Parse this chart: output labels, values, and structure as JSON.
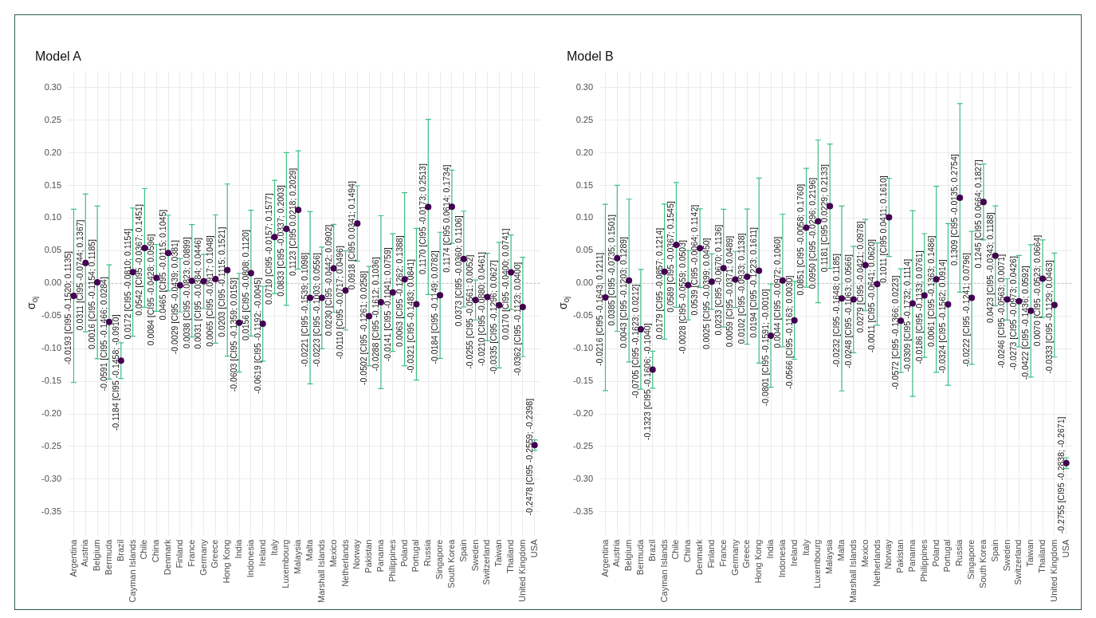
{
  "chart_data": [
    {
      "type": "scatter",
      "title": "Model A",
      "ylabel": "σ$_{0j}$",
      "marker": "circle",
      "grid": true,
      "categories": [
        "Argentina",
        "Austria",
        "Belgium",
        "Bermuda",
        "Brazil",
        "Cayman Islands",
        "Chile",
        "China",
        "Denmark",
        "Finland",
        "France",
        "Germany",
        "Greece",
        "Hong Kong",
        "India",
        "Indonesia",
        "Ireland",
        "Italy",
        "Luxembourg",
        "Malaysia",
        "Malta",
        "Marshall Islands",
        "Mexico",
        "Netherlands",
        "Norway",
        "Pakistan",
        "Panama",
        "Philippines",
        "Poland",
        "Portugal",
        "Russia",
        "Singapore",
        "South Korea",
        "Spain",
        "Sweden",
        "Switzerland",
        "Taiwan",
        "Thailand",
        "United Kingdom",
        "USA"
      ],
      "series": [
        {
          "color": "#440154",
          "values": [
            -0.0193,
            0.0311,
            0.0016,
            -0.0591,
            -0.1184,
            0.0172,
            0.0542,
            0.0084,
            0.0465,
            -0.0029,
            0.0038,
            0.0031,
            0.0065,
            0.0203,
            -0.0603,
            0.0156,
            -0.0619,
            0.071,
            0.0833,
            0.1123,
            -0.0221,
            -0.0223,
            0.023,
            -0.011,
            0.0918,
            -0.0502,
            -0.0288,
            -0.0141,
            0.0063,
            -0.0321,
            0.117,
            -0.0184,
            0.1174,
            0.0373,
            -0.0255,
            -0.021,
            -0.0335,
            0.017,
            -0.0362,
            -0.2478
          ],
          "errors": [
            [
              -0.152,
              0.1135
            ],
            [
              -0.0744,
              0.1367
            ],
            [
              -0.1154,
              0.1185
            ],
            [
              -0.1466,
              0.0284
            ],
            [
              -0.1458,
              -0.091
            ],
            [
              -0.081,
              0.1154
            ],
            [
              -0.0367,
              0.1451
            ],
            [
              -0.0428,
              0.0596
            ],
            [
              -0.0115,
              0.1045
            ],
            [
              -0.0439,
              0.0381
            ],
            [
              -0.0823,
              0.0899
            ],
            [
              -0.0384,
              0.0446
            ],
            [
              -0.0917,
              0.1048
            ],
            [
              -0.1115,
              0.1521
            ],
            [
              -0.1359,
              0.0153
            ],
            [
              -0.0808,
              0.112
            ],
            [
              -0.1192,
              -0.0045
            ],
            [
              -0.0157,
              0.1577
            ],
            [
              -0.0337,
              0.2003
            ],
            [
              0.0218,
              0.2029
            ],
            [
              -0.1539,
              0.1098
            ],
            [
              -0.1003,
              0.0556
            ],
            [
              -0.0442,
              0.0902
            ],
            [
              -0.0717,
              0.0496
            ],
            [
              0.0341,
              0.1494
            ],
            [
              -0.1261,
              0.0258
            ],
            [
              -0.1612,
              0.1036
            ],
            [
              -0.1041,
              0.0759
            ],
            [
              -0.1262,
              0.1388
            ],
            [
              -0.1483,
              0.0841
            ],
            [
              -0.0173,
              0.2513
            ],
            [
              -0.1149,
              0.0782
            ],
            [
              0.0614,
              0.1734
            ],
            [
              -0.036,
              0.1106
            ],
            [
              -0.0561,
              0.0052
            ],
            [
              -0.088,
              0.0461
            ],
            [
              -0.1296,
              0.0627
            ],
            [
              -0.04,
              0.0741
            ],
            [
              -0.1123,
              0.04
            ],
            [
              -0.2559,
              -0.2398
            ]
          ],
          "value_labels": [
            "-0.0193 [CI95 -0.1520; 0.1135]",
            "0.0311 [CI95 -0.0744; 0.1367]",
            "0.0016 [CI95 -0.1154; 0.1185]",
            "-0.0591 [CI95 -0.1466; 0.0284]",
            "-0.1184 [CI95 -0.1458; -0.0910]",
            "0.0172 [CI95 -0.0810; 0.1154]",
            "0.0542 [CI95 -0.0367; 0.1451]",
            "0.0084 [CI95 -0.0428; 0.0596]",
            "0.0465 [CI95 -0.0115; 0.1045]",
            "-0.0029 [CI95 -0.0439; 0.0381]",
            "0.0038 [CI95 -0.0823; 0.0899]",
            "0.0031 [CI95 -0.0384; 0.0446]",
            "0.0065 [CI95 -0.0917; 0.1048]",
            "0.0203 [CI95 -0.1115; 0.1521]",
            "-0.0603 [CI95 -0.1359; 0.0153]",
            "0.0156 [CI95 -0.0808; 0.1120]",
            "-0.0619 [CI95 -0.1192; -0.0045]",
            "0.0710 [CI95 -0.0157; 0.1577]",
            "0.0833 [CI95 -0.0337; 0.2003]",
            "0.1123 [CI95 0.0218; 0.2029]",
            "-0.0221 [CI95 -0.1539; 0.1098]",
            "-0.0223 [CI95 -0.1003; 0.0556]",
            "0.0230 [CI95 -0.0442; 0.0902]",
            "-0.0110 [CI95 -0.0717; 0.0496]",
            "0.0918 [CI95 0.0341; 0.1494]",
            "-0.0502 [CI95 -0.1261; 0.0258]",
            "-0.0288 [CI95 -0.1612; 0.1036]",
            "-0.0141 [CI95 -0.1041; 0.0759]",
            "0.0063 [CI95 -0.1262; 0.1388]",
            "-0.0321 [CI95 -0.1483; 0.0841]",
            "0.1170 [CI95 -0.0173; 0.2513]",
            "-0.0184 [CI95 -0.1149; 0.0782]",
            "0.1174 [CI95 0.0614; 0.1734]",
            "0.0373 [CI95 -0.0360; 0.1106]",
            "-0.0255 [CI95 -0.0561; 0.0052]",
            "-0.0210 [CI95 -0.0880; 0.0461]",
            "-0.0335 [CI95 -0.1296; 0.0627]",
            "0.0170 [CI95 -0.0400; 0.0741]",
            "-0.0362 [CI95 -0.1123; 0.0400]",
            "-0.2478 [CI95 -0.2559; -0.2398]"
          ]
        }
      ],
      "ylim": [
        -0.385,
        0.325
      ],
      "yticks": [
        {
          "value": -0.35,
          "label": "-0.35"
        },
        {
          "value": -0.3,
          "label": "-0.30"
        },
        {
          "value": -0.25,
          "label": "-0.25"
        },
        {
          "value": -0.2,
          "label": "-0.20"
        },
        {
          "value": -0.15,
          "label": "-0.15"
        },
        {
          "value": -0.1,
          "label": "-0.10"
        },
        {
          "value": -0.05,
          "label": "-0.05"
        },
        {
          "value": 0,
          "label": "0.00"
        },
        {
          "value": 0.05,
          "label": "0.05"
        },
        {
          "value": 0.1,
          "label": "0.10"
        },
        {
          "value": 0.15,
          "label": "0.15"
        },
        {
          "value": 0.2,
          "label": "0.20"
        },
        {
          "value": 0.25,
          "label": "0.25"
        },
        {
          "value": 0.3,
          "label": "0.30"
        }
      ],
      "ref_lines": [
        {
          "axis": "y",
          "value": 0,
          "color": "#bbbbbb",
          "line_style": "dotted"
        }
      ]
    },
    {
      "type": "scatter",
      "title": "Model B",
      "ylabel": "σ$_{0j}$",
      "marker": "circle",
      "grid": true,
      "categories": [
        "Argentina",
        "Austria",
        "Belgium",
        "Bermuda",
        "Brazil",
        "Cayman Islands",
        "Chile",
        "China",
        "Denmark",
        "Finland",
        "France",
        "Germany",
        "Greece",
        "Hong Kong",
        "India",
        "Indonesia",
        "Ireland",
        "Italy",
        "Luxembourg",
        "Malaysia",
        "Malta",
        "Marshall Islands",
        "Mexico",
        "Netherlands",
        "Norway",
        "Pakistan",
        "Panama",
        "Philippines",
        "Poland",
        "Portugal",
        "Russia",
        "Singapore",
        "South Korea",
        "Spain",
        "Sweden",
        "Switzerland",
        "Taiwan",
        "Thailand",
        "United Kingdom",
        "USA"
      ],
      "series": [
        {
          "color": "#440154",
          "values": [
            -0.0216,
            0.0385,
            0.0043,
            -0.0705,
            -0.1323,
            0.0179,
            0.0589,
            -0.0028,
            0.0539,
            0.0025,
            0.0233,
            0.0059,
            0.0102,
            0.0194,
            -0.0801,
            0.0044,
            -0.0566,
            0.0851,
            0.095,
            0.1181,
            -0.0232,
            -0.0248,
            0.0279,
            -0.0011,
            0.1011,
            -0.0572,
            -0.0309,
            -0.0186,
            0.0061,
            -0.0324,
            0.1309,
            -0.0222,
            0.1245,
            0.0423,
            -0.0246,
            -0.0273,
            -0.0422,
            0.007,
            -0.0333,
            -0.2755
          ],
          "errors": [
            [
              -0.1643,
              0.1211
            ],
            [
              -0.0735,
              0.1501
            ],
            [
              -0.1203,
              0.1289
            ],
            [
              -0.1623,
              0.0212
            ],
            [
              -0.1606,
              -0.104
            ],
            [
              -0.0857,
              0.1214
            ],
            [
              -0.0367,
              0.1545
            ],
            [
              -0.0559,
              0.0503
            ],
            [
              -0.0064,
              0.1142
            ],
            [
              -0.0399,
              0.045
            ],
            [
              -0.067,
              0.1136
            ],
            [
              -0.0371,
              0.0489
            ],
            [
              -0.0933,
              0.1138
            ],
            [
              -0.1223,
              0.1611
            ],
            [
              -0.1591,
              -0.001
            ],
            [
              -0.0972,
              0.106
            ],
            [
              -0.1163,
              0.003
            ],
            [
              -0.0058,
              0.176
            ],
            [
              -0.0296,
              0.2196
            ],
            [
              0.0229,
              0.2133
            ],
            [
              -0.1648,
              0.1185
            ],
            [
              -0.1063,
              0.0566
            ],
            [
              -0.0421,
              0.0978
            ],
            [
              -0.0641,
              0.062
            ],
            [
              0.0411,
              0.161
            ],
            [
              -0.1366,
              0.0223
            ],
            [
              -0.1732,
              0.1114
            ],
            [
              -0.1133,
              0.0761
            ],
            [
              -0.1363,
              0.1486
            ],
            [
              -0.1562,
              0.0914
            ],
            [
              -0.0135,
              0.2754
            ],
            [
              -0.1241,
              0.0796
            ],
            [
              0.0664,
              0.1827
            ],
            [
              -0.0343,
              0.1188
            ],
            [
              -0.0563,
              0.0071
            ],
            [
              -0.0973,
              0.0426
            ],
            [
              -0.1436,
              0.0592
            ],
            [
              -0.0523,
              0.0664
            ],
            [
              -0.1129,
              0.0463
            ],
            [
              -0.2838,
              -0.2671
            ]
          ],
          "value_labels": [
            "-0.0216 [CI95 -0.1643; 0.1211]",
            "0.0385 [CI95 -0.0735; 0.1501]",
            "0.0043 [CI95 -0.1203; 0.1289]",
            "-0.0705 [CI95 -0.1623; 0.0212]",
            "-0.1323 [CI95 -0.1606; -0.1040]",
            "0.0179 [CI95 -0.0857; 0.1214]",
            "0.0589 [CI95 -0.0367; 0.1545]",
            "-0.0028 [CI95 -0.0559; 0.0503]",
            "0.0539 [CI95 -0.0064; 0.1142]",
            "0.0025 [CI95 -0.0399; 0.0450]",
            "0.0233 [CI95 -0.0670; 0.1136]",
            "0.0059 [CI95 -0.0371; 0.0489]",
            "0.0102 [CI95 -0.0933; 0.1138]",
            "0.0194 [CI95 -0.1223; 0.1611]",
            "-0.0801 [CI95 -0.1591; -0.0010]",
            "0.0044 [CI95 -0.0972; 0.1060]",
            "-0.0566 [CI95 -0.1163; 0.0030]",
            "0.0851 [CI95 -0.0058; 0.1760]",
            "0.0950 [CI95 -0.0296; 0.2196]",
            "0.1181 [CI95 0.0229; 0.2133]",
            "-0.0232 [CI95 -0.1648; 0.1185]",
            "-0.0248 [CI95 -0.1063; 0.0566]",
            "0.0279 [CI95 -0.0421; 0.0978]",
            "-0.0011 [CI95 -0.0641; 0.0620]",
            "0.1011 [CI95 0.0411; 0.1610]",
            "-0.0572 [CI95 -0.1366; 0.0223]",
            "-0.0309 [CI95 -0.1732; 0.1114]",
            "-0.0186 [CI95 -0.1133; 0.0761]",
            "0.0061 [CI95 -0.1363; 0.1486]",
            "-0.0324 [CI95 -0.1562; 0.0914]",
            "0.1309 [CI95 -0.0135; 0.2754]",
            "-0.0222 [CI95 -0.1241; 0.0796]",
            "0.1245 [CI95 0.0664; 0.1827]",
            "0.0423 [CI95 -0.0343; 0.1188]",
            "-0.0246 [CI95 -0.0563; 0.0071]",
            "-0.0273 [CI95 -0.0973; 0.0426]",
            "-0.0422 [CI95 -0.1436; 0.0592]",
            "0.0070 [CI95 -0.0523; 0.0664]",
            "-0.0333 [CI95 -0.1129; 0.0463]",
            "-0.2755 [CI95 -0.2838; -0.2671]"
          ]
        }
      ],
      "ylim": [
        -0.385,
        0.325
      ],
      "yticks": [
        {
          "value": -0.35,
          "label": "-0.35"
        },
        {
          "value": -0.3,
          "label": "-0.30"
        },
        {
          "value": -0.25,
          "label": "-0.25"
        },
        {
          "value": -0.2,
          "label": "-0.20"
        },
        {
          "value": -0.15,
          "label": "-0.15"
        },
        {
          "value": -0.1,
          "label": "-0.10"
        },
        {
          "value": -0.05,
          "label": "-0.05"
        },
        {
          "value": 0,
          "label": "0.00"
        },
        {
          "value": 0.05,
          "label": "0.05"
        },
        {
          "value": 0.1,
          "label": "0.10"
        },
        {
          "value": 0.15,
          "label": "0.15"
        },
        {
          "value": 0.2,
          "label": "0.20"
        },
        {
          "value": 0.25,
          "label": "0.25"
        },
        {
          "value": 0.3,
          "label": "0.30"
        }
      ],
      "ref_lines": [
        {
          "axis": "y",
          "value": 0,
          "color": "#bbbbbb",
          "line_style": "dotted"
        }
      ]
    }
  ]
}
